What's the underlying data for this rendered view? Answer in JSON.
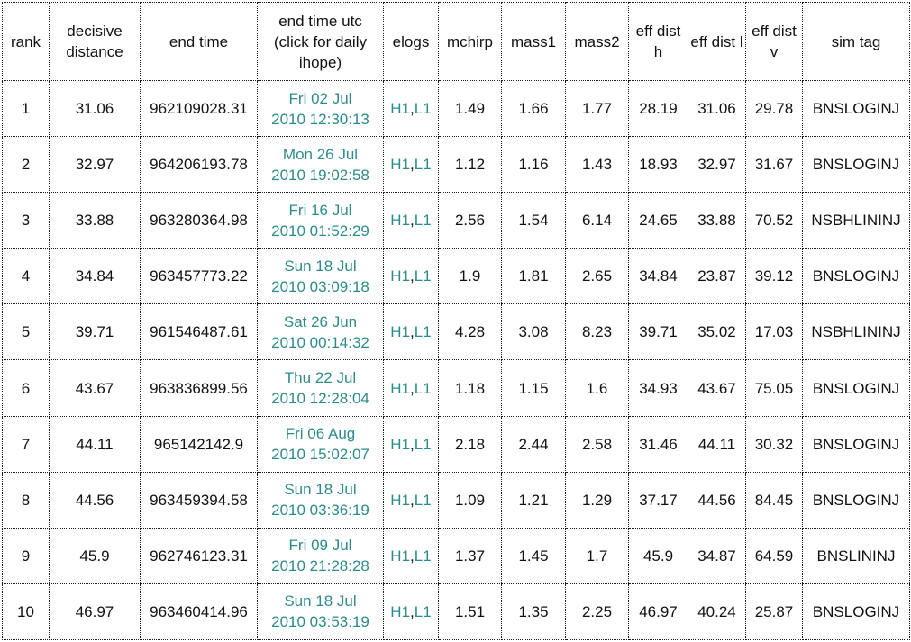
{
  "headers": [
    "rank",
    "decisive distance",
    "end time",
    "end time utc (click for daily ihope)",
    "elogs",
    "mchirp",
    "mass1",
    "mass2",
    "eff dist h",
    "eff dist l",
    "eff dist v",
    "sim tag"
  ],
  "elogs": {
    "h1": "H1",
    "sep": ",",
    "l1": "L1"
  },
  "colors": {
    "link": "#2e8b8b",
    "text": "#111111",
    "border": "#1a1a1a"
  },
  "rows": [
    {
      "rank": "1",
      "decisive_distance": "31.06",
      "end_time": "962109028.31",
      "utc_day": "Fri 02 Jul",
      "utc_time": "2010 12:30:13",
      "mchirp": "1.49",
      "mass1": "1.66",
      "mass2": "1.77",
      "eff_dist_h": "28.19",
      "eff_dist_l": "31.06",
      "eff_dist_v": "29.78",
      "sim_tag": "BNSLOGINJ"
    },
    {
      "rank": "2",
      "decisive_distance": "32.97",
      "end_time": "964206193.78",
      "utc_day": "Mon 26 Jul",
      "utc_time": "2010 19:02:58",
      "mchirp": "1.12",
      "mass1": "1.16",
      "mass2": "1.43",
      "eff_dist_h": "18.93",
      "eff_dist_l": "32.97",
      "eff_dist_v": "31.67",
      "sim_tag": "BNSLOGINJ"
    },
    {
      "rank": "3",
      "decisive_distance": "33.88",
      "end_time": "963280364.98",
      "utc_day": "Fri 16 Jul",
      "utc_time": "2010 01:52:29",
      "mchirp": "2.56",
      "mass1": "1.54",
      "mass2": "6.14",
      "eff_dist_h": "24.65",
      "eff_dist_l": "33.88",
      "eff_dist_v": "70.52",
      "sim_tag": "NSBHLININJ"
    },
    {
      "rank": "4",
      "decisive_distance": "34.84",
      "end_time": "963457773.22",
      "utc_day": "Sun 18 Jul",
      "utc_time": "2010 03:09:18",
      "mchirp": "1.9",
      "mass1": "1.81",
      "mass2": "2.65",
      "eff_dist_h": "34.84",
      "eff_dist_l": "23.87",
      "eff_dist_v": "39.12",
      "sim_tag": "BNSLOGINJ"
    },
    {
      "rank": "5",
      "decisive_distance": "39.71",
      "end_time": "961546487.61",
      "utc_day": "Sat 26 Jun",
      "utc_time": "2010 00:14:32",
      "mchirp": "4.28",
      "mass1": "3.08",
      "mass2": "8.23",
      "eff_dist_h": "39.71",
      "eff_dist_l": "35.02",
      "eff_dist_v": "17.03",
      "sim_tag": "NSBHLININJ"
    },
    {
      "rank": "6",
      "decisive_distance": "43.67",
      "end_time": "963836899.56",
      "utc_day": "Thu 22 Jul",
      "utc_time": "2010 12:28:04",
      "mchirp": "1.18",
      "mass1": "1.15",
      "mass2": "1.6",
      "eff_dist_h": "34.93",
      "eff_dist_l": "43.67",
      "eff_dist_v": "75.05",
      "sim_tag": "BNSLOGINJ"
    },
    {
      "rank": "7",
      "decisive_distance": "44.11",
      "end_time": "965142142.9",
      "utc_day": "Fri 06 Aug",
      "utc_time": "2010 15:02:07",
      "mchirp": "2.18",
      "mass1": "2.44",
      "mass2": "2.58",
      "eff_dist_h": "31.46",
      "eff_dist_l": "44.11",
      "eff_dist_v": "30.32",
      "sim_tag": "BNSLOGINJ"
    },
    {
      "rank": "8",
      "decisive_distance": "44.56",
      "end_time": "963459394.58",
      "utc_day": "Sun 18 Jul",
      "utc_time": "2010 03:36:19",
      "mchirp": "1.09",
      "mass1": "1.21",
      "mass2": "1.29",
      "eff_dist_h": "37.17",
      "eff_dist_l": "44.56",
      "eff_dist_v": "84.45",
      "sim_tag": "BNSLOGINJ"
    },
    {
      "rank": "9",
      "decisive_distance": "45.9",
      "end_time": "962746123.31",
      "utc_day": "Fri 09 Jul",
      "utc_time": "2010 21:28:28",
      "mchirp": "1.37",
      "mass1": "1.45",
      "mass2": "1.7",
      "eff_dist_h": "45.9",
      "eff_dist_l": "34.87",
      "eff_dist_v": "64.59",
      "sim_tag": "BNSLININJ"
    },
    {
      "rank": "10",
      "decisive_distance": "46.97",
      "end_time": "963460414.96",
      "utc_day": "Sun 18 Jul",
      "utc_time": "2010 03:53:19",
      "mchirp": "1.51",
      "mass1": "1.35",
      "mass2": "2.25",
      "eff_dist_h": "46.97",
      "eff_dist_l": "40.24",
      "eff_dist_v": "25.87",
      "sim_tag": "BNSLOGINJ"
    }
  ]
}
